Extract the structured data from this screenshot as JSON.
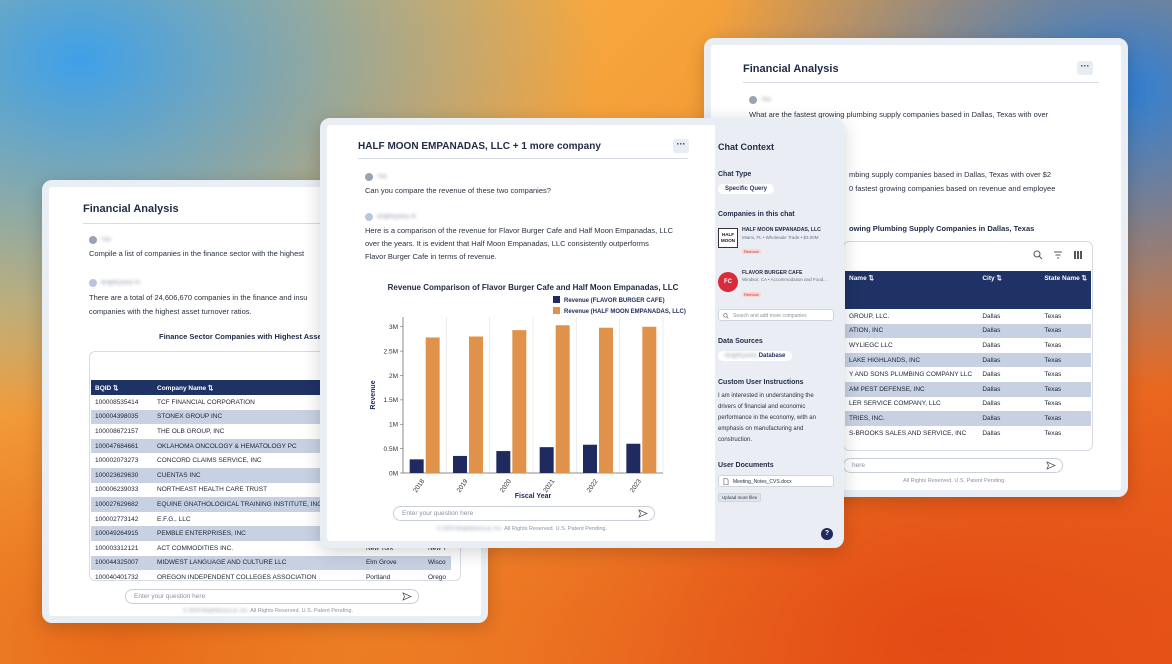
{
  "left_window": {
    "title": "Financial Analysis",
    "user_label": "You",
    "user_message": "Compile a list of companies in the finance sector with the highest",
    "ai_label": "BrightQuery AI",
    "ai_message_1": "There are a total of 24,606,670 companies in the finance and insu",
    "ai_message_2": "companies with the highest asset turnover ratios.",
    "table_title": "Finance Sector Companies with Highest Asset T",
    "columns": [
      "BQID",
      "Company Name"
    ],
    "rows": [
      [
        "100008535414",
        "TCF FINANCIAL CORPORATION",
        "",
        ""
      ],
      [
        "100004398035",
        "STONEX GROUP INC",
        "",
        ""
      ],
      [
        "100008672157",
        "THE OLB GROUP, INC",
        "",
        ""
      ],
      [
        "100047684661",
        "OKLAHOMA ONCOLOGY & HEMATOLOGY PC",
        "",
        ""
      ],
      [
        "100002073273",
        "CONCORD CLAIMS SERVICE, INC",
        "",
        ""
      ],
      [
        "100023629630",
        "CUENTAS INC",
        "",
        ""
      ],
      [
        "100006239033",
        "NORTHEAST HEALTH CARE TRUST",
        "",
        ""
      ],
      [
        "100027629682",
        "EQUINE GNATHOLOGICAL TRAINING INSTITUTE, INC",
        "",
        ""
      ],
      [
        "100002773142",
        "E.F.G., LLC",
        "",
        ""
      ],
      [
        "100049264915",
        "PEMBLE ENTERPRISES, INC",
        "",
        ""
      ],
      [
        "100003312121",
        "ACT COMMODITIES INC.",
        "New York",
        "New Y"
      ],
      [
        "100044325007",
        "MIDWEST LANGUAGE AND CULTURE LLC",
        "Elm Grove",
        "Wisco"
      ],
      [
        "100040401732",
        "OREGON INDEPENDENT COLLEGES ASSOCIATION",
        "Portland",
        "Orego"
      ]
    ],
    "input_placeholder": "Enter your question here",
    "footer_prefix": "© 2024 BrightQuery.ai, Inc.",
    "footer": "All Rights Reserved. U.S. Patent Pending."
  },
  "right_window": {
    "title": "Financial Analysis",
    "user_label": "You",
    "user_message": "What are the fastest growing plumbing supply companies based in Dallas, Texas with over",
    "ai_message_1": "mbing supply companies based in Dallas, Texas with over $2",
    "ai_message_2": "0 fastest growing companies based on revenue and employee",
    "table_title": "owing Plumbing Supply Companies in Dallas, Texas",
    "columns": [
      "Name",
      "City",
      "State Name"
    ],
    "rows": [
      [
        "GROUP, LLC.",
        "Dallas",
        "Texas"
      ],
      [
        "ATION, INC",
        "Dallas",
        "Texas"
      ],
      [
        "WYLIEGC LLC",
        "Dallas",
        "Texas"
      ],
      [
        "LAKE HIGHLANDS, INC",
        "Dallas",
        "Texas"
      ],
      [
        "Y AND SONS PLUMBING COMPANY LLC",
        "Dallas",
        "Texas"
      ],
      [
        "AM PEST DEFENSE, INC",
        "Dallas",
        "Texas"
      ],
      [
        "LER SERVICE COMPANY, LLC",
        "Dallas",
        "Texas"
      ],
      [
        "TRIES, INC.",
        "Dallas",
        "Texas"
      ],
      [
        "S-BROOKS SALES AND SERVICE, INC",
        "Dallas",
        "Texas"
      ]
    ],
    "input_placeholder": "here",
    "footer": "All Rights Reserved. U.S. Patent Pending."
  },
  "center_window": {
    "title": "HALF MOON EMPANADAS, LLC + 1 more company",
    "user_label": "You",
    "user_message": "Can you compare the revenue of these two companies?",
    "ai_label": "BrightQuery AI",
    "ai_message_1": "Here is a comparison of the revenue for Flavor Burger Cafe and Half Moon Empanadas, LLC",
    "ai_message_2": "over the years. It is evident that Half Moon Empanadas, LLC consistently outperforms",
    "ai_message_3": "Flavor Burger Cafe in terms of revenue.",
    "input_placeholder": "Enter your question here",
    "footer_prefix": "© 2024 BrightQuery.ai, Inc.",
    "footer": "All Rights Reserved. U.S. Patent Pending."
  },
  "chat_context": {
    "title": "Chat Context",
    "chat_type_label": "Chat Type",
    "chat_type_value": "Specific Query",
    "companies_label": "Companies in this chat",
    "company_1_name": "HALF MOON EMPANADAS, LLC",
    "company_1_meta": "Miami, FL • Wholesale Trade • $3.00M",
    "company_1_badge": "Remove",
    "company_1_logo": "HALF MOON",
    "company_2_name": "FLAVOR BURGER CAFE",
    "company_2_meta": "Windsor, CA • Accommodation and Food...",
    "company_2_badge": "Remove",
    "company_2_logo": "FC",
    "search_placeholder": "Search and add more companies",
    "data_sources_label": "Data Sources",
    "data_source_prefix": "BrightQuery",
    "data_source": "Database",
    "instructions_label": "Custom User Instructions",
    "instructions_1": "I am interested in understanding the",
    "instructions_2": "drivers of financial and economic",
    "instructions_3": "performance in the economy, with an",
    "instructions_4": "emphasis on manufacturing and",
    "instructions_5": "construction.",
    "documents_label": "User Documents",
    "document_name": "Meeting_Notes_CVS.docx",
    "upload_label": "Upload more files",
    "help_label": "?"
  },
  "colors": {
    "navy": "#1f2a5e",
    "orange": "#e0914a",
    "header": "#1f3266",
    "stripe": "#c7d1e2"
  },
  "chart_data": {
    "type": "bar",
    "title": "Revenue Comparison of Flavor Burger Cafe and Half Moon Empanadas, LLC",
    "xlabel": "Fiscal Year",
    "ylabel": "Revenue",
    "categories": [
      "2018",
      "2019",
      "2020",
      "2021",
      "2022",
      "2023"
    ],
    "series": [
      {
        "name": "Revenue (FLAVOR BURGER CAFE)",
        "values": [
          0.28,
          0.35,
          0.45,
          0.53,
          0.58,
          0.6
        ],
        "color": "#1f2a5e"
      },
      {
        "name": "Revenue (HALF MOON EMPANADAS, LLC)",
        "values": [
          2.78,
          2.8,
          2.93,
          3.03,
          2.98,
          3.0
        ],
        "color": "#e0914a"
      }
    ],
    "ylim": [
      0,
      3.2
    ],
    "yticks": [
      0,
      0.5,
      1,
      1.5,
      2,
      2.5,
      3
    ],
    "ytick_labels": [
      "0M",
      "0.5M",
      "1M",
      "1.5M",
      "2M",
      "2.5M",
      "3M"
    ],
    "legend": "top-right",
    "grid": "vertical"
  }
}
